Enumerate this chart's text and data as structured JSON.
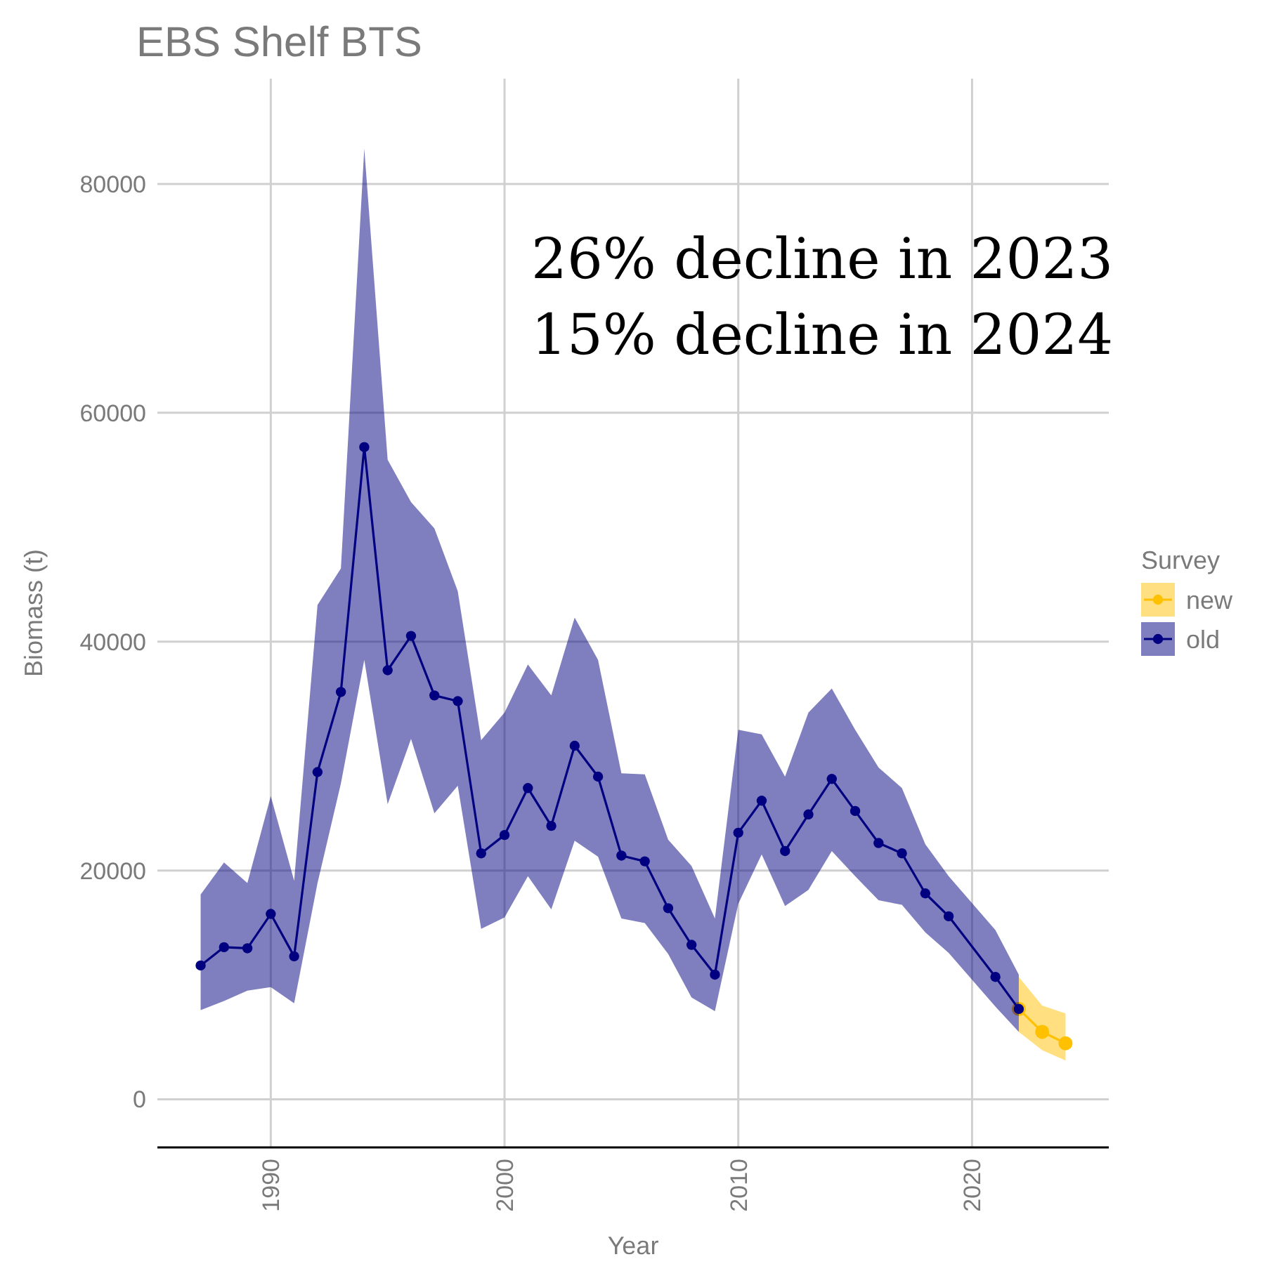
{
  "chart_data": {
    "type": "line",
    "title": "EBS Shelf BTS",
    "xlabel": "Year",
    "ylabel": "Biomass (t)",
    "legend_title": "Survey",
    "annotations": [
      "26% decline in 2023",
      "15% decline in 2024"
    ],
    "xlim": [
      1985.15,
      2025.85
    ],
    "xticks": [
      1990,
      2000,
      2010,
      2020
    ],
    "ylim": [
      -4200,
      89200
    ],
    "yticks": [
      0,
      20000,
      40000,
      60000,
      80000
    ],
    "grid": true,
    "legend": "right",
    "marker": "circle",
    "line_style": "solid",
    "series": [
      {
        "name": "new",
        "color": "#ffc000",
        "x": [
          2022,
          2023,
          2024
        ],
        "values": [
          7900,
          5900,
          4900
        ],
        "lower": [
          5900,
          4300,
          3400
        ],
        "upper": [
          10700,
          8200,
          7500
        ]
      },
      {
        "name": "old",
        "color": "#000080",
        "x": [
          1987,
          1988,
          1989,
          1990,
          1991,
          1992,
          1993,
          1994,
          1995,
          1996,
          1997,
          1998,
          1999,
          2000,
          2001,
          2002,
          2003,
          2004,
          2005,
          2006,
          2007,
          2008,
          2009,
          2010,
          2011,
          2012,
          2013,
          2014,
          2015,
          2016,
          2017,
          2018,
          2019,
          2021,
          2022
        ],
        "values": [
          11700,
          13300,
          13200,
          16200,
          12500,
          28600,
          35600,
          57000,
          37500,
          40500,
          35300,
          34800,
          21500,
          23100,
          27200,
          23900,
          30900,
          28200,
          21300,
          20800,
          16700,
          13500,
          10900,
          23300,
          26100,
          21700,
          24900,
          28000,
          25200,
          22400,
          21500,
          18000,
          16000,
          10700,
          7900
        ],
        "lower": [
          7800,
          8600,
          9500,
          9800,
          8400,
          18900,
          27600,
          38400,
          25800,
          31500,
          25000,
          27400,
          14900,
          15900,
          19500,
          16600,
          22600,
          21200,
          15800,
          15400,
          12700,
          8900,
          7700,
          17100,
          21400,
          16900,
          18300,
          21700,
          19500,
          17400,
          17000,
          14600,
          12800,
          8100,
          5900
        ],
        "upper": [
          17900,
          20700,
          18900,
          26500,
          19100,
          43200,
          46400,
          83100,
          55900,
          52200,
          49900,
          44400,
          31400,
          33800,
          38000,
          35300,
          42100,
          38400,
          28500,
          28400,
          22700,
          20400,
          15800,
          32300,
          31900,
          28200,
          33800,
          35900,
          32300,
          29000,
          27200,
          22300,
          19500,
          14800,
          10900
        ]
      }
    ]
  }
}
